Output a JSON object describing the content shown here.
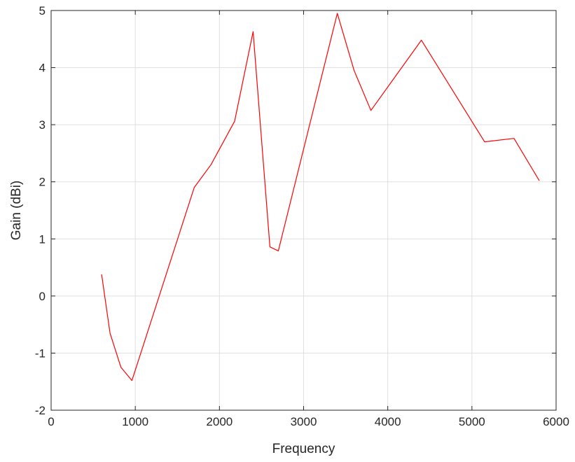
{
  "chart_data": {
    "type": "line",
    "title": "",
    "xlabel": "Frequency",
    "ylabel": "Gain (dBi)",
    "xlim": [
      0,
      6000
    ],
    "ylim": [
      -2,
      5
    ],
    "x_ticks": [
      0,
      1000,
      2000,
      3000,
      4000,
      5000,
      6000
    ],
    "y_ticks": [
      -2,
      -1,
      0,
      1,
      2,
      3,
      4,
      5
    ],
    "x_tick_labels": [
      "0",
      "1000",
      "2000",
      "3000",
      "4000",
      "5000",
      "6000"
    ],
    "y_tick_labels": [
      "-2",
      "-1",
      "0",
      "1",
      "2",
      "3",
      "4",
      "5"
    ],
    "grid": true,
    "box": true,
    "series": [
      {
        "color": "#ff0000",
        "x": [
          600,
          700,
          830,
          960,
          1700,
          1900,
          2180,
          2400,
          2600,
          2700,
          3400,
          3600,
          3800,
          4400,
          5150,
          5500,
          5800
        ],
        "y": [
          0.38,
          -0.65,
          -1.25,
          -1.48,
          1.9,
          2.3,
          3.06,
          4.63,
          0.86,
          0.79,
          4.95,
          3.95,
          3.25,
          4.48,
          2.7,
          2.76,
          2.02
        ]
      }
    ]
  }
}
